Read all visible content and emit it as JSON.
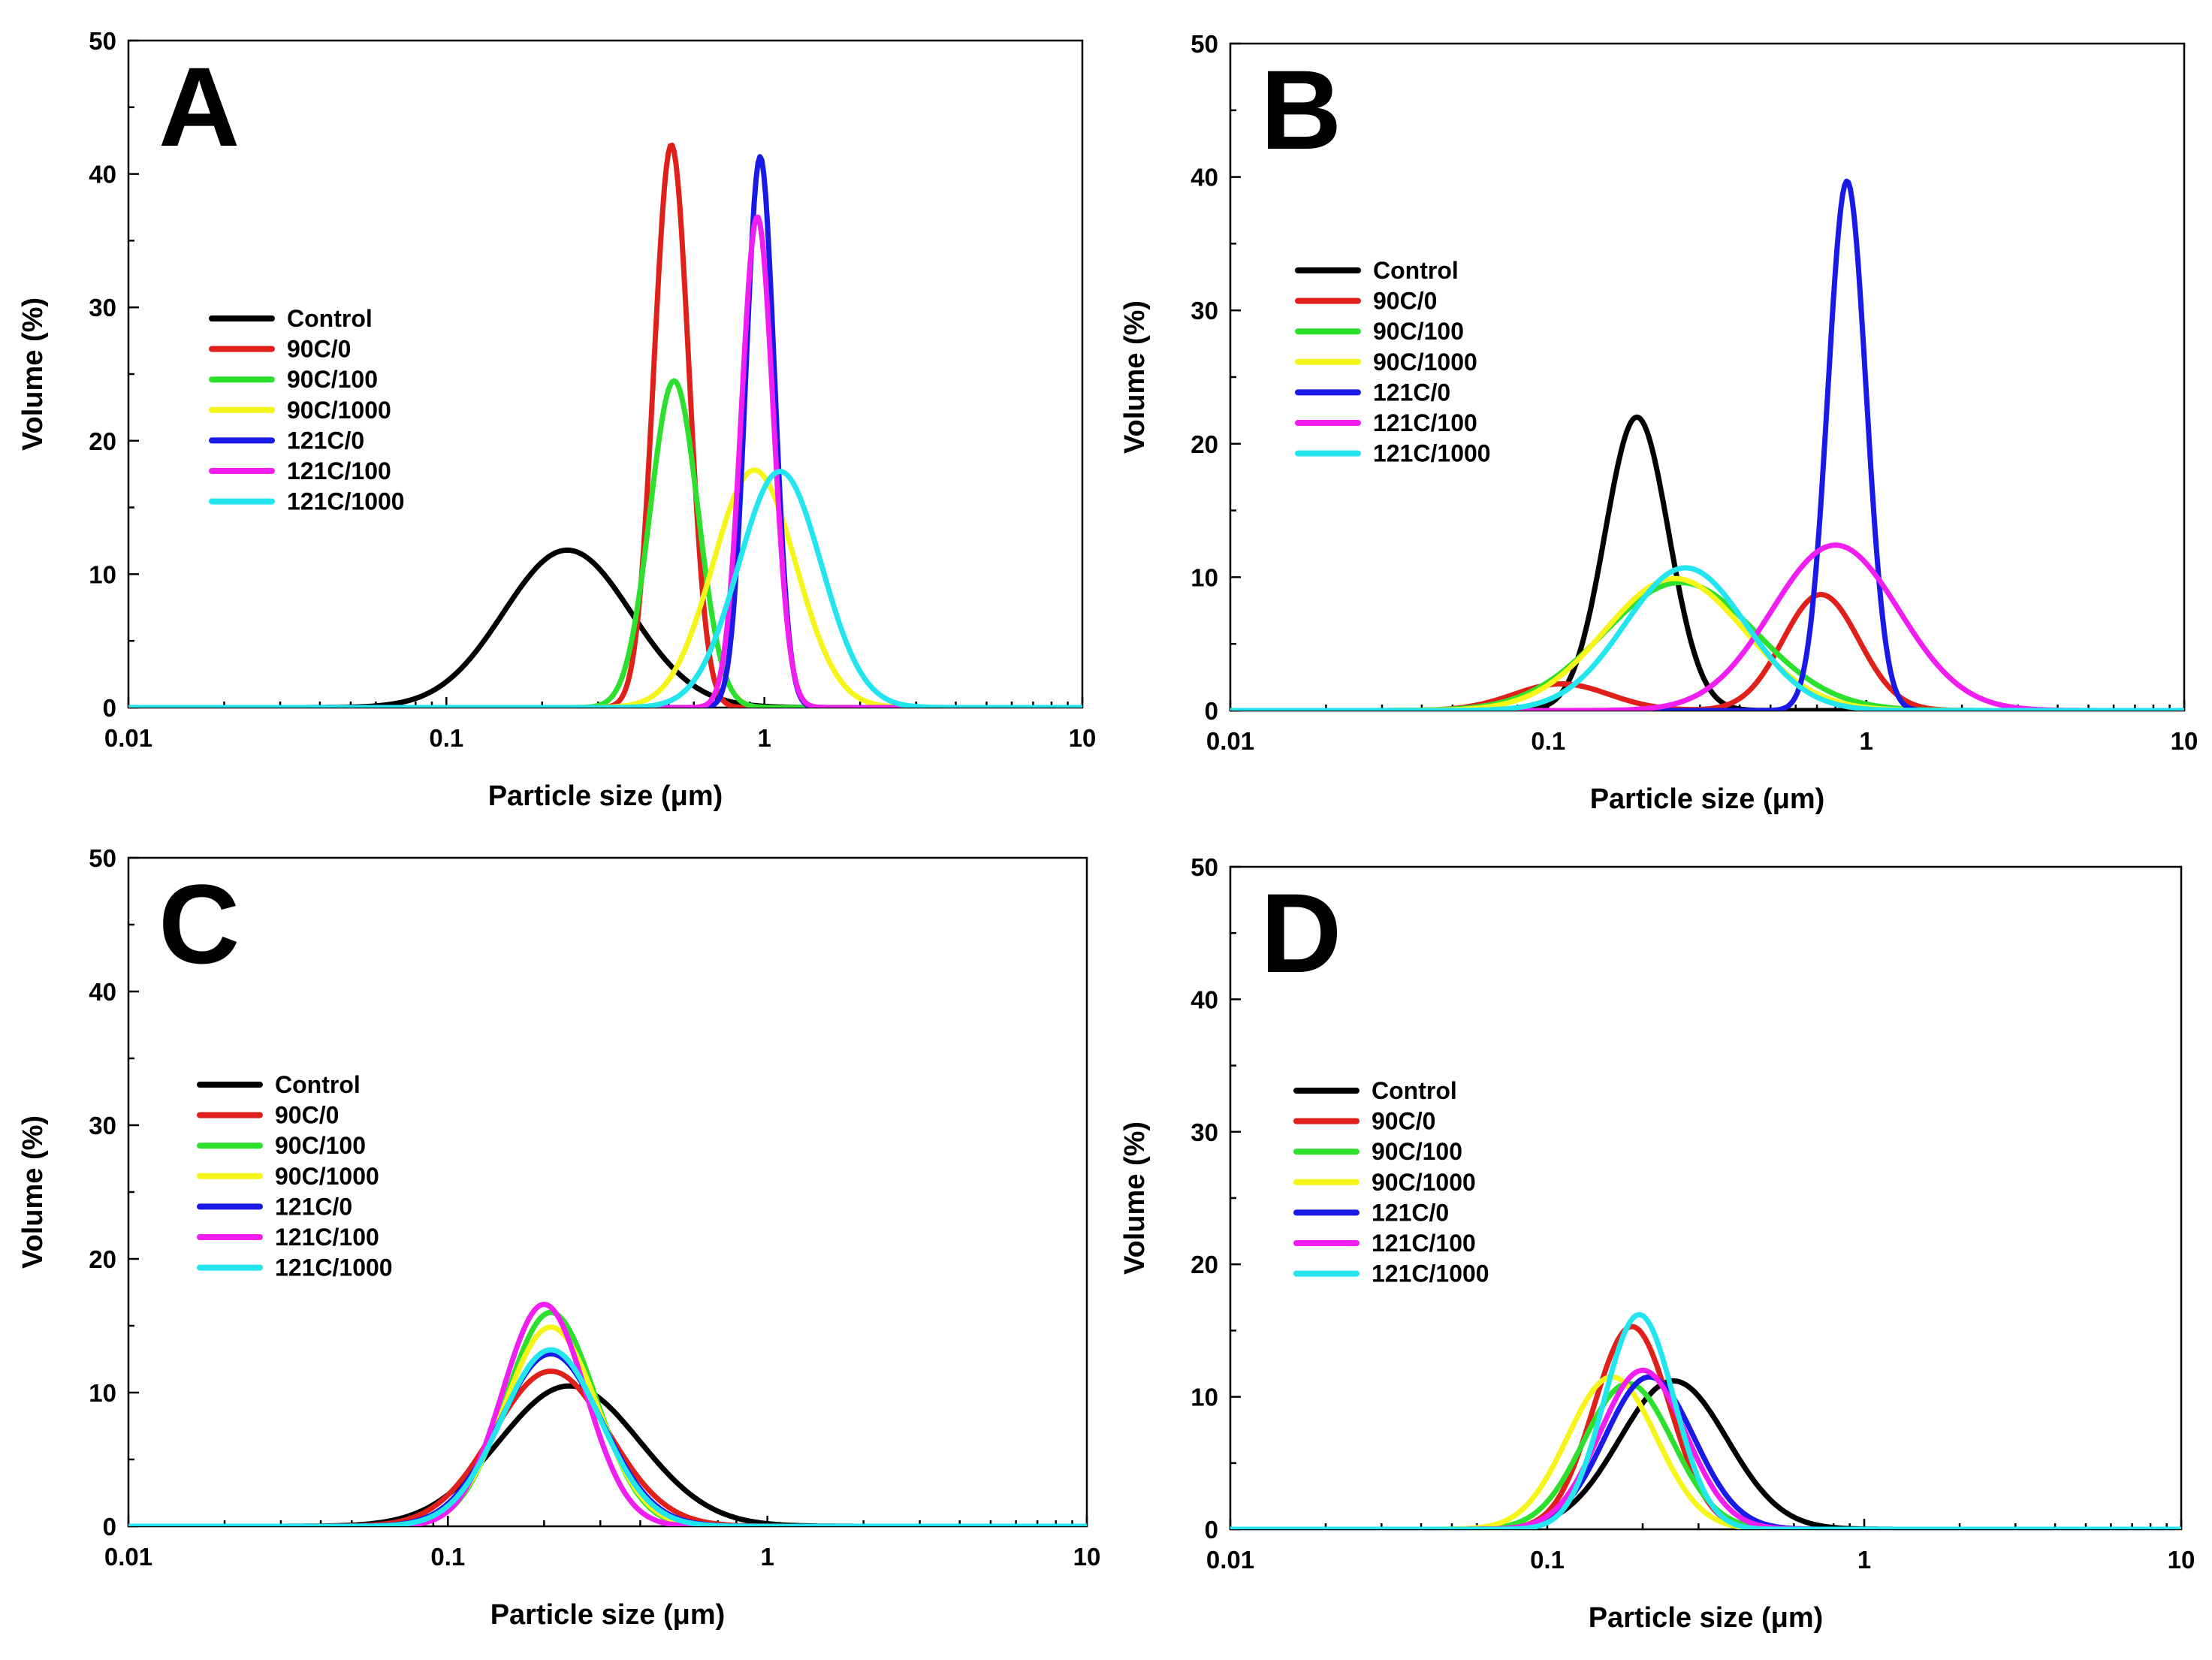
{
  "colors": {
    "Control": "#000000",
    "90C/0": "#e0201b",
    "90C/100": "#2ee02e",
    "90C/1000": "#f5f51a",
    "121C/0": "#1a1ae6",
    "121C/100": "#f01ef0",
    "121C/1000": "#22e5ee"
  },
  "chart_data": [
    {
      "panel": "A",
      "type": "line",
      "xscale": "log",
      "xlabel": "Particle size (μm)",
      "ylabel": "Volume (%)",
      "xlim": [
        0.01,
        10
      ],
      "ylim": [
        0,
        50
      ],
      "xticks": [
        "0.01",
        "0.1",
        "1",
        "10"
      ],
      "yticks": [
        "0",
        "10",
        "20",
        "30",
        "40",
        "50"
      ],
      "legend": [
        "Control",
        "90C/0",
        "90C/100",
        "90C/1000",
        "121C/0",
        "121C/100",
        "121C/1000"
      ],
      "series": [
        {
          "name": "Control",
          "components": [
            {
              "center": 0.24,
              "peak": 11.8,
              "width": 0.2
            }
          ]
        },
        {
          "name": "90C/0",
          "components": [
            {
              "center": 0.51,
              "peak": 42.2,
              "width": 0.055
            }
          ]
        },
        {
          "name": "90C/100",
          "components": [
            {
              "center": 0.52,
              "peak": 24.5,
              "width": 0.075
            }
          ]
        },
        {
          "name": "90C/1000",
          "components": [
            {
              "center": 0.93,
              "peak": 17.8,
              "width": 0.13
            }
          ]
        },
        {
          "name": "121C/0",
          "components": [
            {
              "center": 0.97,
              "peak": 41.3,
              "width": 0.045
            }
          ]
        },
        {
          "name": "121C/100",
          "components": [
            {
              "center": 0.95,
              "peak": 36.8,
              "width": 0.05
            }
          ]
        },
        {
          "name": "121C/1000",
          "components": [
            {
              "center": 1.12,
              "peak": 17.7,
              "width": 0.13
            }
          ]
        }
      ]
    },
    {
      "panel": "B",
      "type": "line",
      "xscale": "log",
      "xlabel": "Particle size (μm)",
      "ylabel": "Volume (%)",
      "xlim": [
        0.01,
        10
      ],
      "ylim": [
        0,
        50
      ],
      "xticks": [
        "0.01",
        "0.1",
        "1",
        "10"
      ],
      "yticks": [
        "0",
        "10",
        "20",
        "30",
        "40",
        "50"
      ],
      "legend": [
        "Control",
        "90C/0",
        "90C/100",
        "90C/1000",
        "121C/0",
        "121C/100",
        "121C/1000"
      ],
      "series": [
        {
          "name": "Control",
          "components": [
            {
              "center": 0.19,
              "peak": 22.0,
              "width": 0.1
            }
          ]
        },
        {
          "name": "90C/0",
          "components": [
            {
              "center": 0.11,
              "peak": 2.0,
              "width": 0.15
            },
            {
              "center": 0.72,
              "peak": 8.7,
              "width": 0.12
            }
          ]
        },
        {
          "name": "90C/100",
          "components": [
            {
              "center": 0.26,
              "peak": 9.6,
              "width": 0.24
            }
          ]
        },
        {
          "name": "90C/1000",
          "components": [
            {
              "center": 0.25,
              "peak": 9.9,
              "width": 0.22
            }
          ]
        },
        {
          "name": "121C/0",
          "components": [
            {
              "center": 0.87,
              "peak": 39.7,
              "width": 0.06
            }
          ]
        },
        {
          "name": "121C/100",
          "components": [
            {
              "center": 0.8,
              "peak": 12.4,
              "width": 0.2
            }
          ]
        },
        {
          "name": "121C/1000",
          "components": [
            {
              "center": 0.27,
              "peak": 10.7,
              "width": 0.19
            }
          ]
        }
      ]
    },
    {
      "panel": "C",
      "type": "line",
      "xscale": "log",
      "xlabel": "Particle size (μm)",
      "ylabel": "Volume (%)",
      "xlim": [
        0.01,
        10
      ],
      "ylim": [
        0,
        50
      ],
      "xticks": [
        "0.01",
        "0.1",
        "1",
        "10"
      ],
      "yticks": [
        "0",
        "10",
        "20",
        "30",
        "40",
        "50"
      ],
      "legend": [
        "Control",
        "90C/0",
        "90C/100",
        "90C/1000",
        "121C/0",
        "121C/100",
        "121C/1000"
      ],
      "series": [
        {
          "name": "Control",
          "components": [
            {
              "center": 0.24,
              "peak": 10.5,
              "width": 0.22
            }
          ]
        },
        {
          "name": "90C/0",
          "components": [
            {
              "center": 0.21,
              "peak": 11.6,
              "width": 0.18
            }
          ]
        },
        {
          "name": "90C/100",
          "components": [
            {
              "center": 0.21,
              "peak": 16.0,
              "width": 0.14
            }
          ]
        },
        {
          "name": "90C/1000",
          "components": [
            {
              "center": 0.21,
              "peak": 14.9,
              "width": 0.145
            }
          ]
        },
        {
          "name": "121C/0",
          "components": [
            {
              "center": 0.21,
              "peak": 12.9,
              "width": 0.16
            }
          ]
        },
        {
          "name": "121C/100",
          "components": [
            {
              "center": 0.2,
              "peak": 16.6,
              "width": 0.13
            }
          ]
        },
        {
          "name": "121C/1000",
          "components": [
            {
              "center": 0.21,
              "peak": 13.2,
              "width": 0.155
            }
          ]
        }
      ]
    },
    {
      "panel": "D",
      "type": "line",
      "xscale": "log",
      "xlabel": "Particle size (μm)",
      "ylabel": "Volume (%)",
      "xlim": [
        0.01,
        10
      ],
      "ylim": [
        0,
        50
      ],
      "xticks": [
        "0.01",
        "0.1",
        "1",
        "10"
      ],
      "yticks": [
        "0",
        "10",
        "20",
        "30",
        "40",
        "50"
      ],
      "legend": [
        "Control",
        "90C/0",
        "90C/100",
        "90C/1000",
        "121C/0",
        "121C/100",
        "121C/1000"
      ],
      "series": [
        {
          "name": "Control",
          "components": [
            {
              "center": 0.25,
              "peak": 11.2,
              "width": 0.17
            }
          ]
        },
        {
          "name": "90C/0",
          "components": [
            {
              "center": 0.185,
              "peak": 15.3,
              "width": 0.12
            }
          ]
        },
        {
          "name": "90C/100",
          "components": [
            {
              "center": 0.18,
              "peak": 11.0,
              "width": 0.14
            }
          ]
        },
        {
          "name": "90C/1000",
          "components": [
            {
              "center": 0.16,
              "peak": 11.5,
              "width": 0.14
            }
          ]
        },
        {
          "name": "121C/0",
          "components": [
            {
              "center": 0.21,
              "peak": 11.5,
              "width": 0.14
            }
          ]
        },
        {
          "name": "121C/100",
          "components": [
            {
              "center": 0.2,
              "peak": 12.0,
              "width": 0.135
            }
          ]
        },
        {
          "name": "121C/1000",
          "components": [
            {
              "center": 0.195,
              "peak": 16.2,
              "width": 0.11
            }
          ]
        }
      ]
    }
  ]
}
